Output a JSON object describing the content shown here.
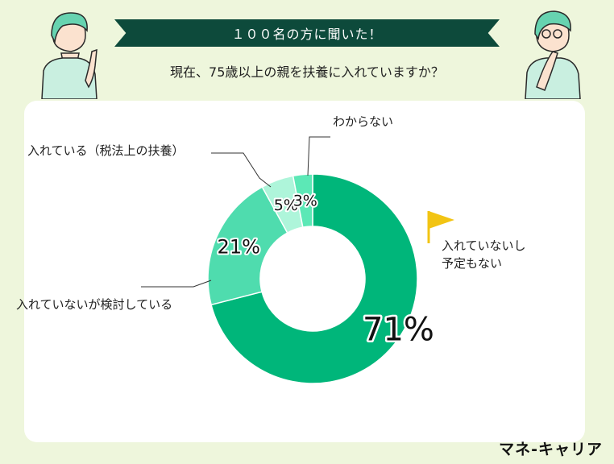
{
  "header": {
    "banner_text": "１００名の方に聞いた！",
    "question": "現在、75歳以上の親を扶養に入れていますか？"
  },
  "brand": "マネ-キャリア",
  "chart_data": {
    "type": "pie",
    "donut": true,
    "slices": [
      {
        "label": "入れていないし予定もない",
        "label_lines": [
          "入れていないし",
          "予定もない"
        ],
        "value": 71,
        "display": "71%",
        "color": "#00b67a"
      },
      {
        "label": "入れていないが検討している",
        "label_lines": [
          "入れていないが検討している"
        ],
        "value": 21,
        "display": "21%",
        "color": "#4fdcae"
      },
      {
        "label": "入れている（税法上の扶養）",
        "label_lines": [
          "入れている（税法上の扶養）"
        ],
        "value": 5,
        "display": "5%",
        "color": "#aef5da"
      },
      {
        "label": "わからない",
        "label_lines": [
          "わからない"
        ],
        "value": 3,
        "display": "3%",
        "color": "#5ce8b6"
      }
    ],
    "colors": {
      "flag": "#f2c413",
      "leader": "#333333"
    }
  }
}
